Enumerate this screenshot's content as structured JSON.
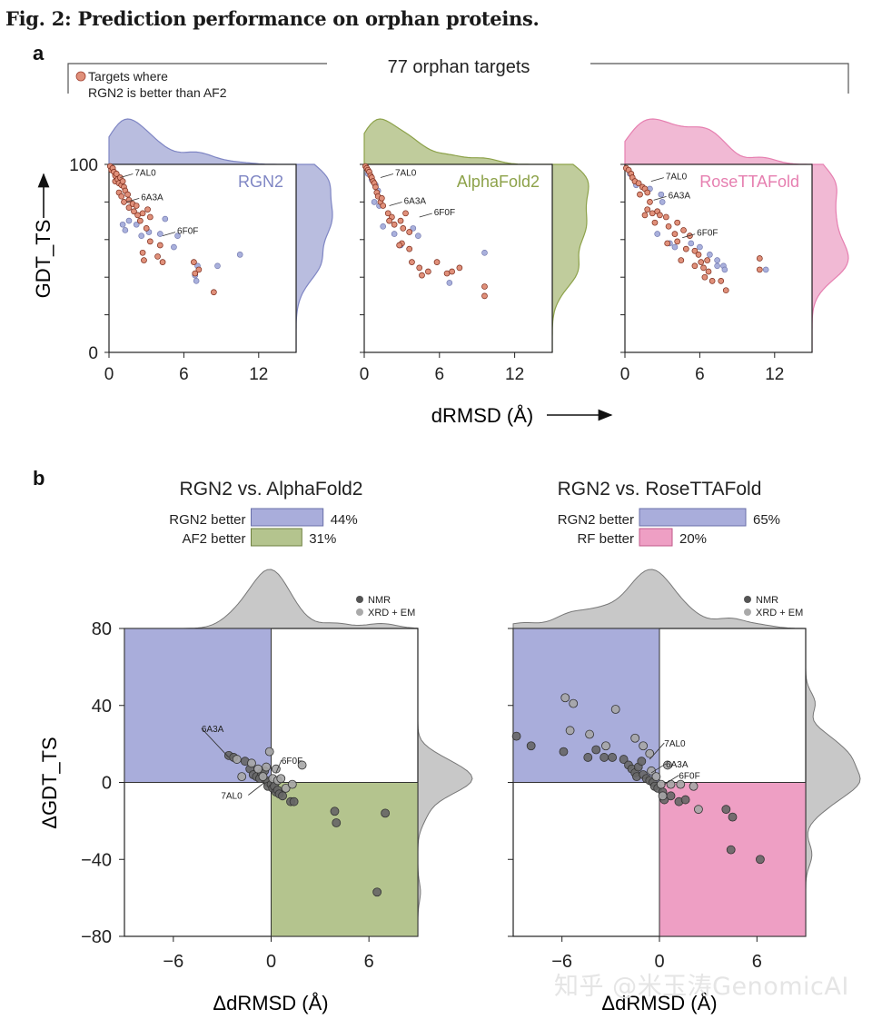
{
  "figure": {
    "title": "Fig. 2: Prediction performance on orphan proteins.",
    "panel_a_letter": "a",
    "panel_b_letter": "b",
    "watermark": "知乎 @米玉涛GenomicAI"
  },
  "panel_a": {
    "header": "77 orphan targets",
    "legend_line1": "Targets where",
    "legend_line2": "RGN2 is better than AF2",
    "ylabel": "GDT_TS",
    "xlabel": "dRMSD (Å)",
    "highlight_color": "#e0907a",
    "other_color": "#a9b0dc"
  },
  "panel_b": {
    "ylabel": "ΔGDT_TS",
    "xlabel": "ΔdRMSD (Å)",
    "legend_nmr": "NMR",
    "legend_xrd": "XRD + EM"
  },
  "chart_data": [
    {
      "type": "scatter",
      "method": "RGN2",
      "color": "#7f86c4",
      "xlim": [
        0,
        15
      ],
      "ylim": [
        0,
        100
      ],
      "xticks": [
        0,
        6,
        12
      ],
      "yticks": [
        0,
        100
      ],
      "labels": [
        {
          "text": "7AL0",
          "x": 0.9,
          "y": 93
        },
        {
          "text": "6A3A",
          "x": 1.4,
          "y": 80
        },
        {
          "text": "6F0F",
          "x": 4.3,
          "y": 62
        }
      ],
      "points": [
        [
          0.1,
          99,
          1
        ],
        [
          0.2,
          97,
          1
        ],
        [
          0.3,
          98,
          1
        ],
        [
          0.4,
          96,
          1
        ],
        [
          0.5,
          94,
          1
        ],
        [
          0.6,
          95,
          1
        ],
        [
          0.5,
          91,
          1
        ],
        [
          0.7,
          92,
          1
        ],
        [
          0.8,
          90,
          1
        ],
        [
          0.9,
          93,
          1
        ],
        [
          1.0,
          89,
          1
        ],
        [
          1.1,
          91,
          1
        ],
        [
          1.2,
          88,
          1
        ],
        [
          1.3,
          86,
          1
        ],
        [
          0.8,
          85,
          1
        ],
        [
          1.5,
          84,
          1
        ],
        [
          1.0,
          83,
          1
        ],
        [
          1.2,
          80,
          1
        ],
        [
          1.6,
          81,
          1
        ],
        [
          1.9,
          79,
          1
        ],
        [
          2.2,
          78,
          1
        ],
        [
          2.0,
          75,
          1
        ],
        [
          2.3,
          73,
          1
        ],
        [
          1.6,
          77,
          1
        ],
        [
          2.7,
          74,
          1
        ],
        [
          2.5,
          70,
          1
        ],
        [
          3.1,
          76,
          1
        ],
        [
          3.3,
          72,
          1
        ],
        [
          3.0,
          66,
          1
        ],
        [
          3.3,
          59,
          1
        ],
        [
          2.7,
          53,
          1
        ],
        [
          2.8,
          49,
          1
        ],
        [
          3.9,
          51,
          1
        ],
        [
          4.1,
          57,
          1
        ],
        [
          4.3,
          48,
          1
        ],
        [
          6.8,
          48,
          1
        ],
        [
          7.2,
          44,
          1
        ],
        [
          6.9,
          42,
          1
        ],
        [
          8.4,
          32,
          1
        ],
        [
          1.1,
          68,
          0
        ],
        [
          1.3,
          65,
          0
        ],
        [
          1.6,
          70,
          0
        ],
        [
          2.2,
          68,
          0
        ],
        [
          2.6,
          62,
          0
        ],
        [
          3.2,
          64,
          0
        ],
        [
          4.5,
          71,
          0
        ],
        [
          4.1,
          63,
          0
        ],
        [
          5.5,
          62,
          0
        ],
        [
          5.2,
          56,
          0
        ],
        [
          7.1,
          46,
          0
        ],
        [
          6.9,
          41,
          0
        ],
        [
          7.0,
          38,
          0
        ],
        [
          8.7,
          46,
          0
        ],
        [
          10.5,
          52,
          0
        ]
      ]
    },
    {
      "type": "scatter",
      "method": "AlphaFold2",
      "color": "#8da24a",
      "xlim": [
        0,
        15
      ],
      "ylim": [
        0,
        100
      ],
      "xticks": [
        0,
        6,
        12
      ],
      "yticks": [
        0,
        100
      ],
      "labels": [
        {
          "text": "7AL0",
          "x": 1.3,
          "y": 93
        },
        {
          "text": "6A3A",
          "x": 2.0,
          "y": 78
        },
        {
          "text": "6F0F",
          "x": 4.4,
          "y": 72
        }
      ],
      "points": [
        [
          0.1,
          99,
          1
        ],
        [
          0.2,
          98,
          1
        ],
        [
          0.3,
          97,
          1
        ],
        [
          0.4,
          96,
          1
        ],
        [
          0.5,
          94,
          1
        ],
        [
          0.6,
          93,
          1
        ],
        [
          0.7,
          91,
          1
        ],
        [
          0.8,
          90,
          1
        ],
        [
          0.9,
          88,
          1
        ],
        [
          1.0,
          85,
          1
        ],
        [
          1.1,
          83,
          1
        ],
        [
          1.3,
          80,
          1
        ],
        [
          1.5,
          78,
          1
        ],
        [
          1.4,
          82,
          1
        ],
        [
          1.9,
          74,
          1
        ],
        [
          2.2,
          72,
          1
        ],
        [
          2.0,
          70,
          1
        ],
        [
          2.4,
          68,
          1
        ],
        [
          2.9,
          70,
          1
        ],
        [
          3.3,
          74,
          1
        ],
        [
          3.1,
          66,
          1
        ],
        [
          3.6,
          64,
          1
        ],
        [
          3.0,
          58,
          1
        ],
        [
          3.6,
          55,
          1
        ],
        [
          2.8,
          57,
          1
        ],
        [
          3.8,
          48,
          1
        ],
        [
          4.4,
          45,
          1
        ],
        [
          5.1,
          43,
          1
        ],
        [
          4.6,
          41,
          1
        ],
        [
          5.8,
          48,
          1
        ],
        [
          6.6,
          42,
          1
        ],
        [
          7.0,
          43,
          1
        ],
        [
          7.6,
          45,
          1
        ],
        [
          9.6,
          35,
          1
        ],
        [
          9.6,
          30,
          1
        ],
        [
          0.3,
          95,
          0
        ],
        [
          0.6,
          92,
          0
        ],
        [
          0.9,
          89,
          0
        ],
        [
          1.1,
          86,
          0
        ],
        [
          0.8,
          80,
          0
        ],
        [
          1.2,
          78,
          0
        ],
        [
          1.5,
          67,
          0
        ],
        [
          2.4,
          63,
          0
        ],
        [
          2.9,
          57,
          0
        ],
        [
          3.9,
          66,
          0
        ],
        [
          4.3,
          62,
          0
        ],
        [
          6.8,
          37,
          0
        ],
        [
          9.6,
          53,
          0
        ]
      ]
    },
    {
      "type": "scatter",
      "method": "RoseTTAFold",
      "color": "#e67fb0",
      "xlim": [
        0,
        15
      ],
      "ylim": [
        0,
        100
      ],
      "xticks": [
        0,
        6,
        12
      ],
      "yticks": [
        0,
        100
      ],
      "labels": [
        {
          "text": "7AL0",
          "x": 2.1,
          "y": 91
        },
        {
          "text": "6A3A",
          "x": 2.3,
          "y": 81
        },
        {
          "text": "6F0F",
          "x": 4.6,
          "y": 61
        }
      ],
      "points": [
        [
          0.1,
          98,
          1
        ],
        [
          0.3,
          97,
          1
        ],
        [
          0.5,
          95,
          1
        ],
        [
          0.6,
          93,
          1
        ],
        [
          0.8,
          91,
          1
        ],
        [
          1.1,
          90,
          1
        ],
        [
          1.4,
          88,
          1
        ],
        [
          1.6,
          87,
          1
        ],
        [
          1.2,
          84,
          1
        ],
        [
          1.8,
          85,
          1
        ],
        [
          2.0,
          80,
          1
        ],
        [
          1.8,
          76,
          1
        ],
        [
          2.2,
          74,
          1
        ],
        [
          1.6,
          73,
          1
        ],
        [
          2.6,
          75,
          1
        ],
        [
          2.8,
          73,
          1
        ],
        [
          2.4,
          69,
          1
        ],
        [
          3.3,
          72,
          1
        ],
        [
          3.5,
          67,
          1
        ],
        [
          4.2,
          69,
          1
        ],
        [
          4.0,
          63,
          1
        ],
        [
          4.7,
          65,
          1
        ],
        [
          4.2,
          59,
          1
        ],
        [
          5.2,
          62,
          1
        ],
        [
          3.4,
          58,
          1
        ],
        [
          4.9,
          55,
          1
        ],
        [
          5.6,
          54,
          1
        ],
        [
          5.9,
          52,
          1
        ],
        [
          6.1,
          48,
          1
        ],
        [
          6.6,
          49,
          1
        ],
        [
          4.5,
          49,
          1
        ],
        [
          5.6,
          46,
          1
        ],
        [
          6.3,
          45,
          1
        ],
        [
          6.7,
          43,
          1
        ],
        [
          6.4,
          40,
          1
        ],
        [
          7.0,
          38,
          1
        ],
        [
          7.7,
          38,
          1
        ],
        [
          8.1,
          33,
          1
        ],
        [
          10.8,
          50,
          1
        ],
        [
          10.8,
          44,
          1
        ],
        [
          0.4,
          95,
          0
        ],
        [
          0.9,
          89,
          0
        ],
        [
          2.0,
          87,
          0
        ],
        [
          2.9,
          84,
          0
        ],
        [
          3.0,
          80,
          0
        ],
        [
          2.6,
          63,
          0
        ],
        [
          3.6,
          58,
          0
        ],
        [
          4.0,
          56,
          0
        ],
        [
          5.3,
          58,
          0
        ],
        [
          6.0,
          56,
          0
        ],
        [
          6.8,
          52,
          0
        ],
        [
          7.4,
          49,
          0
        ],
        [
          7.4,
          46,
          0
        ],
        [
          7.9,
          46,
          0
        ],
        [
          8.0,
          44,
          0
        ],
        [
          11.3,
          44,
          0
        ]
      ]
    },
    {
      "type": "scatter",
      "comparison": "RGN2 vs. AlphaFold2",
      "better_label_1": "RGN2 better",
      "better_pct_1": "44%",
      "better_value_1": 44,
      "color_1": "#a9addb",
      "better_label_2": "AF2 better",
      "better_pct_2": "31%",
      "better_value_2": 31,
      "color_2": "#b4c48e",
      "xlim": [
        -9,
        9
      ],
      "ylim": [
        -80,
        80
      ],
      "xticks": [
        -6,
        0,
        6
      ],
      "yticks": [
        -80,
        -40,
        0,
        40,
        80
      ],
      "labels": [
        {
          "text": "6A3A",
          "x": -2.6,
          "y": 13
        },
        {
          "text": "6F0F",
          "x": 0.3,
          "y": 5
        },
        {
          "text": "7AL0",
          "x": -0.4,
          "y": 0
        }
      ],
      "points": [
        [
          -2.6,
          14,
          1
        ],
        [
          -2.3,
          13,
          1
        ],
        [
          -1.6,
          11,
          1
        ],
        [
          -1.3,
          7,
          1
        ],
        [
          -1.1,
          4,
          1
        ],
        [
          -0.9,
          3,
          1
        ],
        [
          -0.7,
          2,
          1
        ],
        [
          -0.6,
          5,
          1
        ],
        [
          -0.4,
          6,
          1
        ],
        [
          -0.3,
          1,
          1
        ],
        [
          -0.2,
          0,
          1
        ],
        [
          -0.2,
          -2,
          1
        ],
        [
          0.0,
          -1,
          1
        ],
        [
          0.1,
          -3,
          1
        ],
        [
          0.2,
          -2,
          1
        ],
        [
          0.3,
          -5,
          1
        ],
        [
          0.4,
          -4,
          1
        ],
        [
          0.5,
          -6,
          1
        ],
        [
          0.7,
          -7,
          1
        ],
        [
          1.2,
          -10,
          1
        ],
        [
          1.4,
          -10,
          1
        ],
        [
          3.9,
          -15,
          1
        ],
        [
          4.0,
          -21,
          1
        ],
        [
          7.0,
          -16,
          1
        ],
        [
          6.5,
          -57,
          1
        ],
        [
          -2.1,
          12,
          0
        ],
        [
          -1.8,
          3,
          0
        ],
        [
          -1.2,
          10,
          0
        ],
        [
          -0.8,
          7,
          0
        ],
        [
          -0.5,
          3,
          0
        ],
        [
          -0.3,
          8,
          0
        ],
        [
          -0.1,
          16,
          0
        ],
        [
          0.1,
          2,
          0
        ],
        [
          0.3,
          7,
          0
        ],
        [
          0.4,
          1,
          0
        ],
        [
          0.6,
          2,
          0
        ],
        [
          0.9,
          -3,
          0
        ],
        [
          1.3,
          -1,
          0
        ],
        [
          1.9,
          9,
          0
        ]
      ]
    },
    {
      "type": "scatter",
      "comparison": "RGN2 vs. RoseTTAFold",
      "better_label_1": "RGN2 better",
      "better_pct_1": "65%",
      "better_value_1": 65,
      "color_1": "#a9addb",
      "better_label_2": "RF better",
      "better_pct_2": "20%",
      "better_value_2": 20,
      "color_2": "#ee9fc4",
      "xlim": [
        -9,
        9
      ],
      "ylim": [
        -80,
        80
      ],
      "xticks": [
        -6,
        0,
        6
      ],
      "yticks": [
        -80,
        -40,
        0,
        40,
        80
      ],
      "labels": [
        {
          "text": "7AL0",
          "x": -0.6,
          "y": 12
        },
        {
          "text": "6A3A",
          "x": -0.5,
          "y": 5
        },
        {
          "text": "6F0F",
          "x": 0.3,
          "y": -1
        }
      ],
      "points": [
        [
          -8.8,
          24,
          1
        ],
        [
          -7.9,
          19,
          1
        ],
        [
          -5.9,
          16,
          1
        ],
        [
          -4.4,
          13,
          1
        ],
        [
          -3.9,
          17,
          1
        ],
        [
          -3.4,
          13,
          1
        ],
        [
          -2.9,
          13,
          1
        ],
        [
          -2.2,
          12,
          1
        ],
        [
          -1.9,
          9,
          1
        ],
        [
          -1.7,
          7,
          1
        ],
        [
          -1.5,
          5,
          1
        ],
        [
          -1.4,
          3,
          1
        ],
        [
          -1.3,
          8,
          1
        ],
        [
          -1.1,
          11,
          1
        ],
        [
          -1.0,
          4,
          1
        ],
        [
          -0.8,
          2,
          1
        ],
        [
          -0.6,
          1,
          1
        ],
        [
          -0.4,
          0,
          1
        ],
        [
          -0.3,
          -2,
          1
        ],
        [
          -0.1,
          -3,
          1
        ],
        [
          0.2,
          -5,
          1
        ],
        [
          0.3,
          -9,
          1
        ],
        [
          0.7,
          -7,
          1
        ],
        [
          1.2,
          -10,
          1
        ],
        [
          1.6,
          -9,
          1
        ],
        [
          4.1,
          -14,
          1
        ],
        [
          4.5,
          -18,
          1
        ],
        [
          4.4,
          -35,
          1
        ],
        [
          6.2,
          -40,
          1
        ],
        [
          -5.8,
          44,
          0
        ],
        [
          -5.3,
          41,
          0
        ],
        [
          -4.3,
          25,
          0
        ],
        [
          -5.5,
          27,
          0
        ],
        [
          -3.3,
          19,
          0
        ],
        [
          -2.7,
          38,
          0
        ],
        [
          -1.5,
          23,
          0
        ],
        [
          -1.0,
          19,
          0
        ],
        [
          -0.6,
          15,
          0
        ],
        [
          -0.5,
          6,
          0
        ],
        [
          -0.2,
          3,
          0
        ],
        [
          0.1,
          -1,
          0
        ],
        [
          0.2,
          -7,
          0
        ],
        [
          0.7,
          -1,
          0
        ],
        [
          1.3,
          -1,
          0
        ],
        [
          2.1,
          -2,
          0
        ],
        [
          2.4,
          -14,
          0
        ],
        [
          0.5,
          9,
          0
        ]
      ]
    }
  ]
}
